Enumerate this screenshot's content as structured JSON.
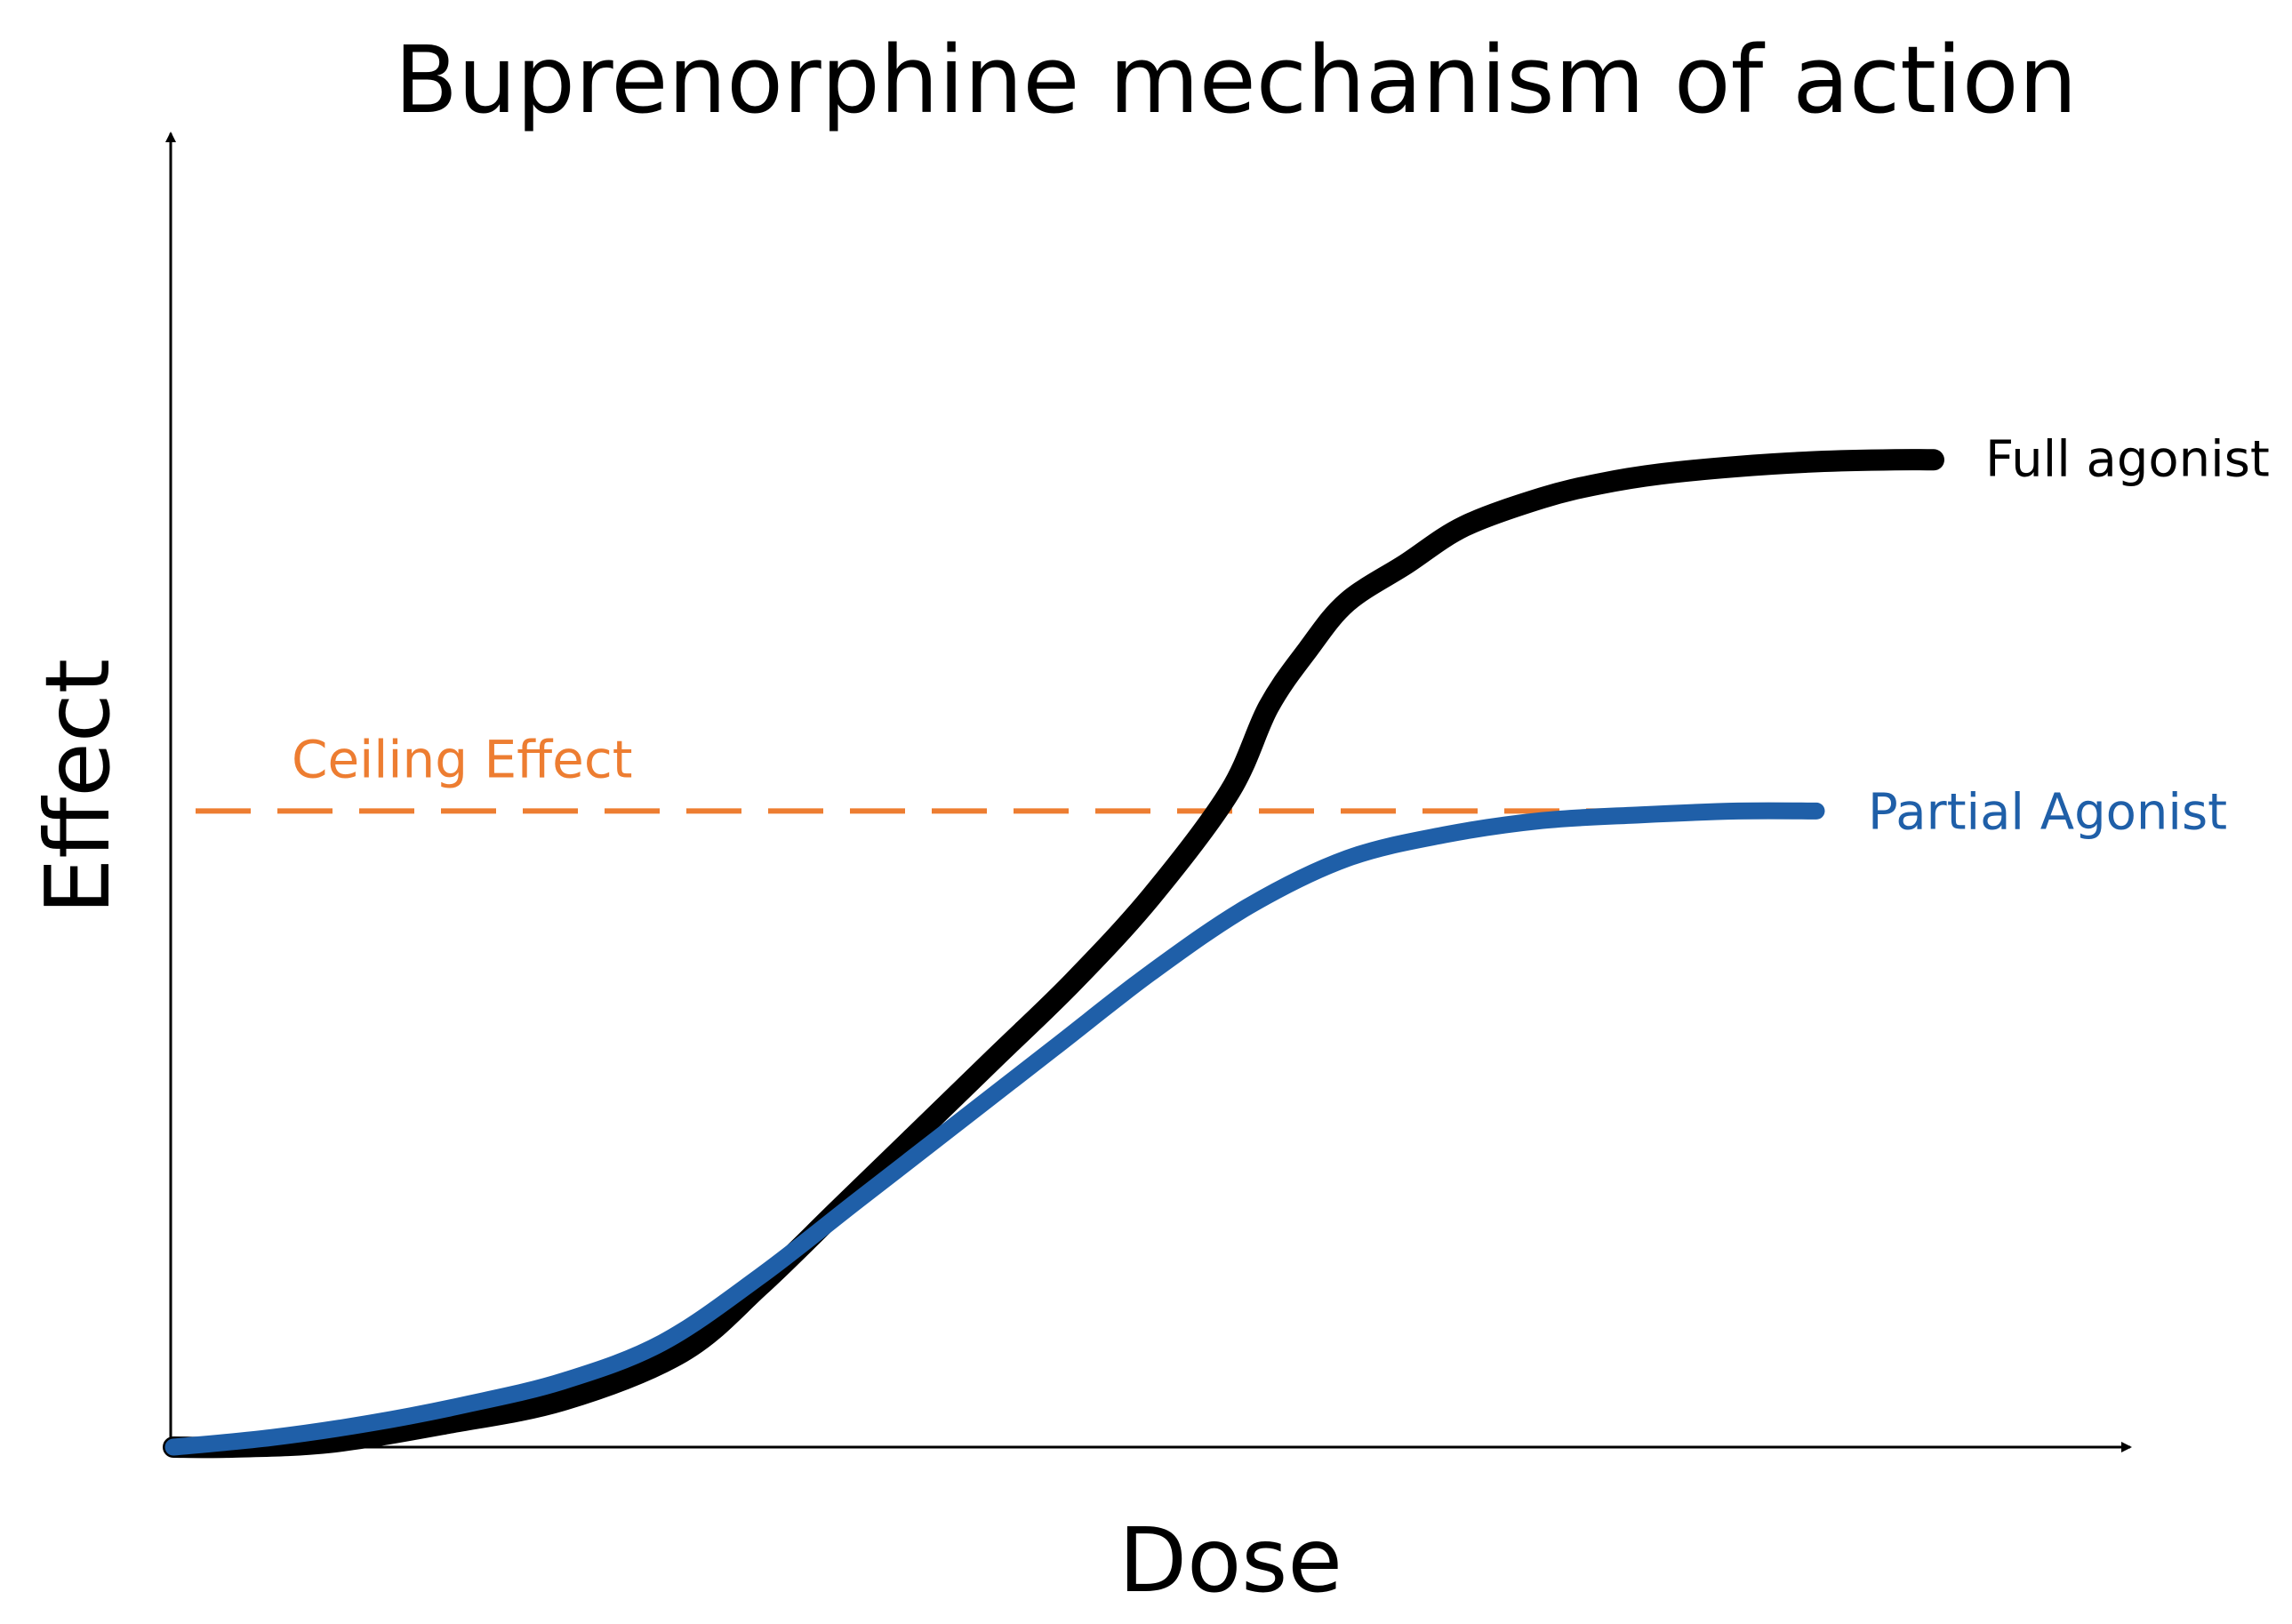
{
  "chart_data": {
    "type": "line",
    "title": "Buprenorphine mechanism of action",
    "xlabel": "Dose",
    "ylabel": "Effect",
    "xlim": [
      0,
      100
    ],
    "ylim": [
      0,
      100
    ],
    "grid": false,
    "legend": "inline-right",
    "series": [
      {
        "name": "Full agonist",
        "color": "#000000",
        "x": [
          0,
          3,
          8,
          14,
          20,
          26,
          30,
          34,
          38,
          42,
          46,
          50,
          54,
          56,
          58,
          60,
          63,
          66,
          70,
          73,
          76,
          80,
          84,
          88,
          90
        ],
        "y": [
          0,
          0,
          0.5,
          2.5,
          5,
          10,
          17,
          25,
          33,
          41,
          49,
          58,
          69,
          78,
          84,
          89,
          93,
          97,
          100,
          101.5,
          102.5,
          103.3,
          103.8,
          104,
          104
        ]
      },
      {
        "name": "Partial Agonist",
        "color": "#1f5fa8",
        "x": [
          0,
          5,
          10,
          15,
          20,
          25,
          30,
          35,
          40,
          45,
          50,
          55,
          60,
          65,
          70,
          75,
          80,
          84
        ],
        "y": [
          0,
          1,
          2.5,
          4.5,
          7,
          11,
          18,
          26,
          34,
          42,
          50,
          57,
          62,
          64.5,
          66,
          66.6,
          67,
          67
        ]
      }
    ],
    "annotations": [
      {
        "text": "Ceiling Effect",
        "y": 67,
        "color": "#ed7d31",
        "style": "dashed"
      }
    ]
  }
}
